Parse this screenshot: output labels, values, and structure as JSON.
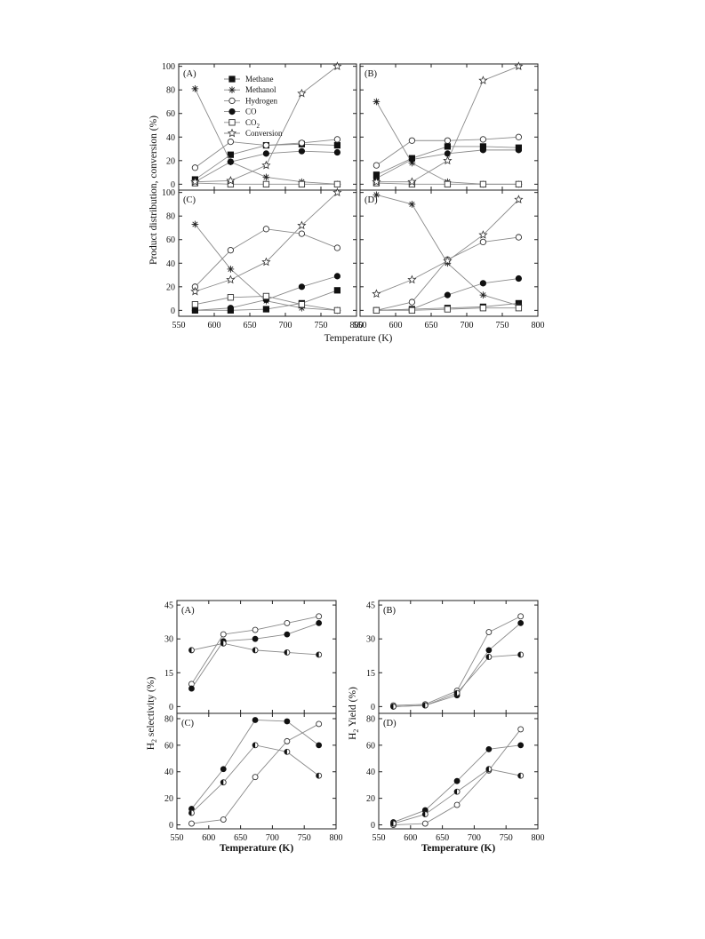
{
  "chart_data": [
    {
      "type": "line",
      "xlabel": "Temperature (K)",
      "ylabel": "Product distribution, conversion (%)",
      "xlim": [
        550,
        800
      ],
      "ylim": [
        -5,
        102
      ],
      "xticks": [
        "550",
        "600",
        "650",
        "700",
        "750",
        "800"
      ],
      "yticks": [
        "0",
        "20",
        "40",
        "60",
        "80",
        "100"
      ],
      "legend": {
        "position": "top-left of panel (A)",
        "entries": [
          {
            "label": "Methane",
            "marker": "square-filled"
          },
          {
            "label": "Methanol",
            "marker": "asterisk"
          },
          {
            "label": "Hydrogen",
            "marker": "circle-open"
          },
          {
            "label": "CO",
            "marker": "circle-filled"
          },
          {
            "label": "CO",
            "subscript": "2",
            "marker": "square-open"
          },
          {
            "label": "Conversion",
            "marker": "star-open"
          }
        ]
      },
      "x": [
        573,
        623,
        673,
        723,
        773
      ],
      "panels": [
        {
          "label": "(A)",
          "series": [
            {
              "name": "Methane",
              "marker": "square-filled",
              "values": [
                4,
                25,
                33,
                34,
                33
              ]
            },
            {
              "name": "Methanol",
              "marker": "asterisk",
              "values": [
                81,
                19,
                6,
                2,
                0
              ]
            },
            {
              "name": "Hydrogen",
              "marker": "circle-open",
              "values": [
                14,
                36,
                33,
                35,
                38
              ]
            },
            {
              "name": "CO",
              "marker": "circle-filled",
              "values": [
                2,
                19,
                26,
                28,
                27
              ]
            },
            {
              "name": "CO2",
              "marker": "square-open",
              "values": [
                1,
                0,
                0,
                0,
                0
              ]
            },
            {
              "name": "Conversion",
              "marker": "star-open",
              "values": [
                2,
                3,
                16,
                77,
                100
              ]
            }
          ]
        },
        {
          "label": "(B)",
          "series": [
            {
              "name": "Methane",
              "marker": "square-filled",
              "values": [
                8,
                22,
                32,
                32,
                31
              ]
            },
            {
              "name": "Methanol",
              "marker": "asterisk",
              "values": [
                70,
                18,
                2,
                0,
                0
              ]
            },
            {
              "name": "Hydrogen",
              "marker": "circle-open",
              "values": [
                16,
                37,
                37,
                38,
                40
              ]
            },
            {
              "name": "CO",
              "marker": "circle-filled",
              "values": [
                5,
                21,
                26,
                29,
                29
              ]
            },
            {
              "name": "CO2",
              "marker": "square-open",
              "values": [
                1,
                0,
                0,
                0,
                0
              ]
            },
            {
              "name": "Conversion",
              "marker": "star-open",
              "values": [
                2,
                2,
                20,
                88,
                100
              ]
            }
          ]
        },
        {
          "label": "(C)",
          "series": [
            {
              "name": "Methane",
              "marker": "square-filled",
              "values": [
                0,
                0,
                1,
                6,
                17
              ]
            },
            {
              "name": "Methanol",
              "marker": "asterisk",
              "values": [
                73,
                35,
                8,
                2,
                0
              ]
            },
            {
              "name": "Hydrogen",
              "marker": "circle-open",
              "values": [
                20,
                51,
                69,
                65,
                53
              ]
            },
            {
              "name": "CO",
              "marker": "circle-filled",
              "values": [
                0,
                2,
                9,
                20,
                29
              ]
            },
            {
              "name": "CO2",
              "marker": "square-open",
              "values": [
                5,
                11,
                12,
                5,
                0
              ]
            },
            {
              "name": "Conversion",
              "marker": "star-open",
              "values": [
                16,
                26,
                41,
                72,
                100
              ]
            }
          ]
        },
        {
          "label": "(D)",
          "series": [
            {
              "name": "Methane",
              "marker": "square-filled",
              "values": [
                0,
                1,
                2,
                3,
                6
              ]
            },
            {
              "name": "Methanol",
              "marker": "asterisk",
              "values": [
                98,
                90,
                40,
                13,
                4
              ]
            },
            {
              "name": "Hydrogen",
              "marker": "circle-open",
              "values": [
                0,
                7,
                43,
                58,
                62
              ]
            },
            {
              "name": "CO",
              "marker": "circle-filled",
              "values": [
                0,
                1,
                13,
                23,
                27
              ]
            },
            {
              "name": "CO2",
              "marker": "square-open",
              "values": [
                0,
                0,
                1,
                2,
                2
              ]
            },
            {
              "name": "Conversion",
              "marker": "star-open",
              "values": [
                14,
                26,
                42,
                64,
                94
              ]
            }
          ]
        }
      ]
    },
    {
      "type": "line",
      "xlabel": "Temperature (K)",
      "ylabel": "H",
      "ylabel_sub": "2",
      "ylabel_rest": " selectivity (%)",
      "xlim": [
        550,
        800
      ],
      "xticks": [
        "550",
        "600",
        "650",
        "700",
        "750",
        "800"
      ],
      "x": [
        573,
        623,
        673,
        723,
        773
      ],
      "panels": [
        {
          "label": "(A)",
          "ylim": [
            -3,
            47
          ],
          "yticks": [
            "0",
            "15",
            "30",
            "45"
          ],
          "series": [
            {
              "marker": "circle-open",
              "values": [
                10,
                32,
                34,
                37,
                40
              ]
            },
            {
              "marker": "circle-filled",
              "values": [
                8,
                29,
                30,
                32,
                37
              ]
            },
            {
              "marker": "circle-half",
              "values": [
                25,
                28,
                25,
                24,
                23
              ]
            }
          ]
        },
        {
          "label": "(C)",
          "ylim": [
            -3,
            84
          ],
          "yticks": [
            "0",
            "20",
            "40",
            "60",
            "80"
          ],
          "series": [
            {
              "marker": "circle-open",
              "values": [
                1,
                4,
                36,
                63,
                76
              ]
            },
            {
              "marker": "circle-filled",
              "values": [
                12,
                42,
                79,
                78,
                60
              ]
            },
            {
              "marker": "circle-half",
              "values": [
                9,
                32,
                60,
                55,
                37
              ]
            }
          ]
        }
      ]
    },
    {
      "type": "line",
      "xlabel": "Temperature (K)",
      "ylabel": "H",
      "ylabel_sub": "2",
      "ylabel_rest": " Yield (%)",
      "xlim": [
        550,
        800
      ],
      "xticks": [
        "550",
        "600",
        "650",
        "700",
        "750",
        "800"
      ],
      "x": [
        573,
        623,
        673,
        723,
        773
      ],
      "panels": [
        {
          "label": "(B)",
          "ylim": [
            -3,
            47
          ],
          "yticks": [
            "0",
            "15",
            "30",
            "45"
          ],
          "series": [
            {
              "marker": "circle-open",
              "values": [
                0.5,
                1,
                7,
                33,
                40
              ]
            },
            {
              "marker": "circle-filled",
              "values": [
                0,
                0.5,
                5,
                25,
                37
              ]
            },
            {
              "marker": "circle-half",
              "values": [
                0,
                0.5,
                6,
                22,
                23
              ]
            }
          ]
        },
        {
          "label": "(D)",
          "ylim": [
            -3,
            84
          ],
          "yticks": [
            "0",
            "20",
            "40",
            "60",
            "80"
          ],
          "series": [
            {
              "marker": "circle-open",
              "values": [
                0,
                1,
                15,
                41,
                72
              ]
            },
            {
              "marker": "circle-filled",
              "values": [
                2,
                11,
                33,
                57,
                60
              ]
            },
            {
              "marker": "circle-half",
              "values": [
                1,
                8,
                25,
                42,
                37
              ]
            }
          ]
        }
      ]
    }
  ]
}
